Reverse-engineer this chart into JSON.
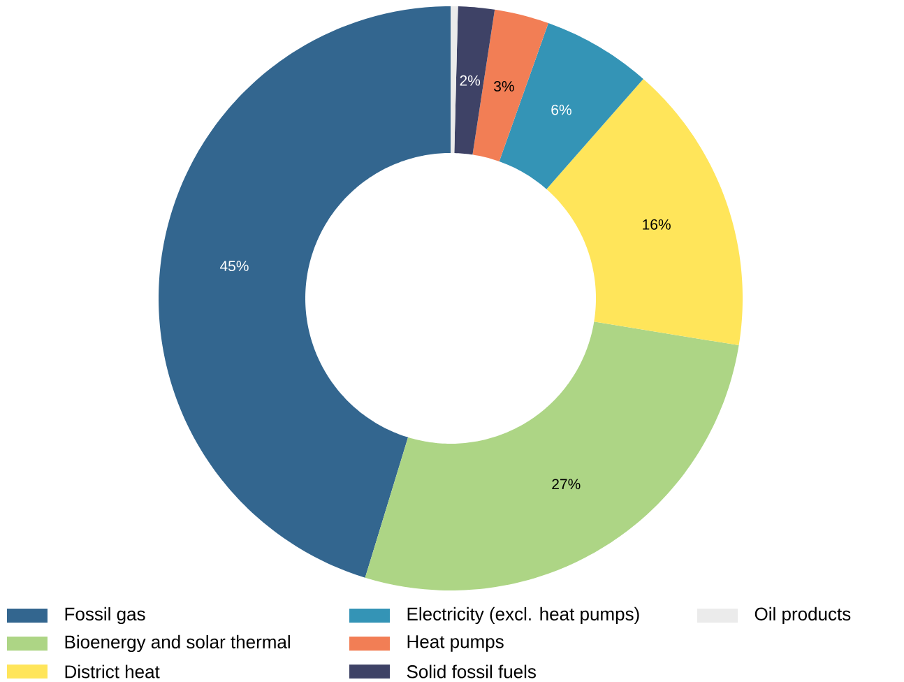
{
  "chart_data": {
    "type": "donut",
    "categories": [
      "Fossil gas",
      "Bioenergy and solar thermal",
      "District heat",
      "Electricity (excl. heat pumps)",
      "Heat pumps",
      "Solid fossil fuels",
      "Oil products"
    ],
    "values": [
      45,
      27,
      16,
      6,
      3,
      2,
      0.4
    ],
    "colors": [
      "#33668f",
      "#add585",
      "#ffe55a",
      "#3494b6",
      "#f27e55",
      "#3e4266",
      "#ebebeb"
    ],
    "value_labels": [
      "45%",
      "27%",
      "16%",
      "6%",
      "3%",
      "2%",
      null
    ],
    "legend": "bottom"
  }
}
